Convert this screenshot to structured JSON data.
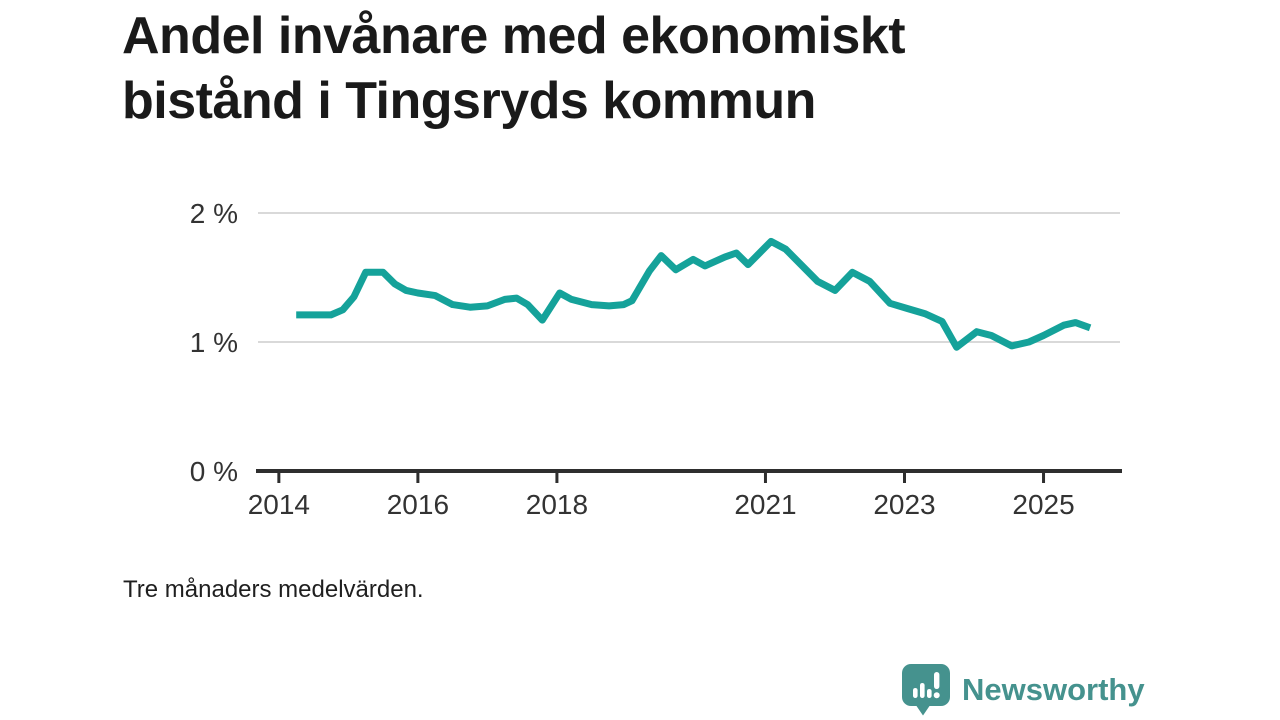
{
  "page": {
    "title_lines": [
      "Andel invånare med ekonomiskt",
      "bistånd i Tingsryds kommun"
    ],
    "title_full": "Andel invånare med ekonomiskt bistånd i Tingsryds kommun",
    "footnote": "Tre månaders medelvärden.",
    "brand": {
      "name": "Newsworthy",
      "icon": "newsworthy-speech-bubble-bar-chart-icon",
      "color": "#45928e"
    }
  },
  "colors": {
    "background": "#ffffff",
    "line": "#15a29a",
    "grid": "#d9d9d9",
    "axis": "#2e2e2e",
    "tick_label": "#333333",
    "title": "#1a1a1a",
    "logo": "#45928e"
  },
  "chart_data": {
    "type": "line",
    "title": "Andel invånare med ekonomiskt bistånd i Tingsryds kommun",
    "note": "Tre månaders medelvärden.",
    "unit": "%",
    "xlabel": "",
    "ylabel": "",
    "grid": "horizontal",
    "legend": "none",
    "xlim": [
      2013.7,
      2026.1
    ],
    "ylim": [
      0,
      2.15
    ],
    "x_ticks": [
      {
        "value": 2014,
        "label": "2014"
      },
      {
        "value": 2016,
        "label": "2016"
      },
      {
        "value": 2018,
        "label": "2018"
      },
      {
        "value": 2021,
        "label": "2021"
      },
      {
        "value": 2023,
        "label": "2023"
      },
      {
        "value": 2025,
        "label": "2025"
      }
    ],
    "y_ticks": [
      {
        "value": 0,
        "label": "0 %"
      },
      {
        "value": 1,
        "label": "1 %"
      },
      {
        "value": 2,
        "label": "2 %"
      }
    ],
    "series": [
      {
        "name": "Andel invånare med ekonomiskt bistånd (%)",
        "color": "#15a29a",
        "points": [
          [
            2014.25,
            1.21
          ],
          [
            2014.5,
            1.21
          ],
          [
            2014.75,
            1.21
          ],
          [
            2014.92,
            1.25
          ],
          [
            2015.08,
            1.35
          ],
          [
            2015.25,
            1.54
          ],
          [
            2015.5,
            1.54
          ],
          [
            2015.67,
            1.45
          ],
          [
            2015.83,
            1.4
          ],
          [
            2016.0,
            1.38
          ],
          [
            2016.25,
            1.36
          ],
          [
            2016.5,
            1.29
          ],
          [
            2016.75,
            1.27
          ],
          [
            2017.0,
            1.28
          ],
          [
            2017.25,
            1.33
          ],
          [
            2017.42,
            1.34
          ],
          [
            2017.58,
            1.29
          ],
          [
            2017.79,
            1.17
          ],
          [
            2018.04,
            1.38
          ],
          [
            2018.21,
            1.33
          ],
          [
            2018.5,
            1.29
          ],
          [
            2018.75,
            1.28
          ],
          [
            2018.96,
            1.29
          ],
          [
            2019.08,
            1.32
          ],
          [
            2019.33,
            1.55
          ],
          [
            2019.5,
            1.67
          ],
          [
            2019.71,
            1.56
          ],
          [
            2019.96,
            1.64
          ],
          [
            2020.13,
            1.59
          ],
          [
            2020.42,
            1.66
          ],
          [
            2020.58,
            1.69
          ],
          [
            2020.75,
            1.6
          ],
          [
            2021.08,
            1.78
          ],
          [
            2021.29,
            1.72
          ],
          [
            2021.75,
            1.47
          ],
          [
            2022.0,
            1.4
          ],
          [
            2022.25,
            1.54
          ],
          [
            2022.5,
            1.47
          ],
          [
            2022.79,
            1.3
          ],
          [
            2023.04,
            1.26
          ],
          [
            2023.29,
            1.22
          ],
          [
            2023.54,
            1.16
          ],
          [
            2023.75,
            0.96
          ],
          [
            2024.04,
            1.08
          ],
          [
            2024.25,
            1.05
          ],
          [
            2024.54,
            0.97
          ],
          [
            2024.79,
            1.0
          ],
          [
            2025.0,
            1.05
          ],
          [
            2025.29,
            1.13
          ],
          [
            2025.46,
            1.15
          ],
          [
            2025.67,
            1.11
          ]
        ]
      }
    ]
  }
}
